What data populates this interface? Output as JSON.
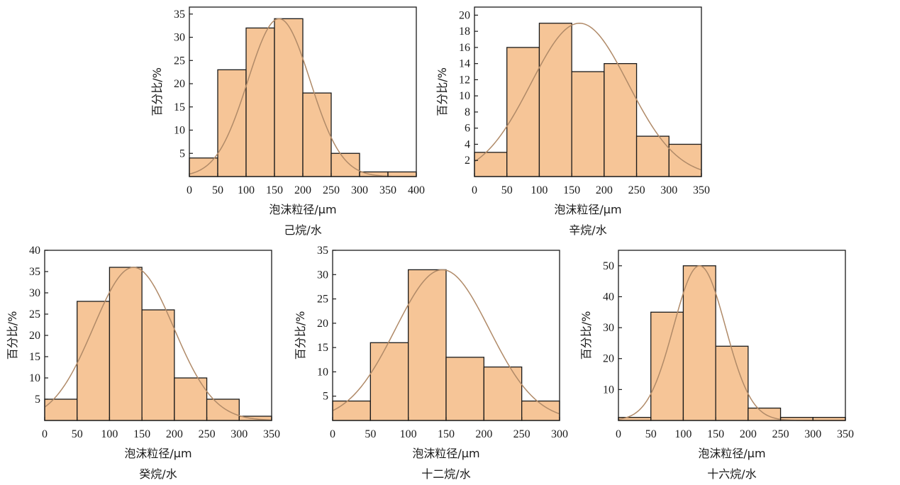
{
  "figure_colors": {
    "bar_fill": "#F6C597",
    "bar_edge": "#1a1a1a",
    "curve": "#B08A68"
  },
  "chart_data": [
    {
      "type": "bar",
      "histogram": true,
      "title": "己烷/水",
      "xlabel": "泡沫粒径/μm",
      "ylabel": "百分比/%",
      "bins": [
        [
          0,
          50
        ],
        [
          50,
          100
        ],
        [
          100,
          150
        ],
        [
          150,
          200
        ],
        [
          200,
          250
        ],
        [
          250,
          300
        ],
        [
          300,
          350
        ],
        [
          350,
          400
        ]
      ],
      "values": [
        4,
        23,
        32,
        34,
        18,
        5,
        1,
        1
      ],
      "xlim": [
        0,
        400
      ],
      "ylim": [
        0,
        36.5
      ],
      "xticks": [
        0,
        50,
        100,
        150,
        200,
        250,
        300,
        350,
        400
      ],
      "yticks": [
        5,
        10,
        15,
        20,
        25,
        30,
        35
      ],
      "fit_curve": {
        "type": "normal",
        "mean": 158,
        "sd": 55,
        "peak": 34
      }
    },
    {
      "type": "bar",
      "histogram": true,
      "title": "辛烷/水",
      "xlabel": "泡沫粒径/μm",
      "ylabel": "百分比/%",
      "bins": [
        [
          0,
          50
        ],
        [
          50,
          100
        ],
        [
          100,
          150
        ],
        [
          150,
          200
        ],
        [
          200,
          250
        ],
        [
          250,
          300
        ],
        [
          300,
          350
        ]
      ],
      "values": [
        3,
        16,
        19,
        13,
        14,
        5,
        4
      ],
      "xlim": [
        0,
        350
      ],
      "ylim": [
        0,
        21
      ],
      "xticks": [
        0,
        50,
        100,
        150,
        200,
        250,
        300,
        350
      ],
      "yticks": [
        2,
        4,
        6,
        8,
        10,
        12,
        14,
        16,
        18,
        20
      ],
      "fit_curve": {
        "type": "normal",
        "mean": 162,
        "sd": 75,
        "peak": 19
      }
    },
    {
      "type": "bar",
      "histogram": true,
      "title": "癸烷/水",
      "xlabel": "泡沫粒径/μm",
      "ylabel": "百分比/%",
      "bins": [
        [
          0,
          50
        ],
        [
          50,
          100
        ],
        [
          100,
          150
        ],
        [
          150,
          200
        ],
        [
          200,
          250
        ],
        [
          250,
          300
        ],
        [
          300,
          350
        ]
      ],
      "values": [
        5,
        28,
        36,
        26,
        10,
        5,
        1
      ],
      "xlim": [
        0,
        350
      ],
      "ylim": [
        0,
        40
      ],
      "xticks": [
        0,
        50,
        100,
        150,
        200,
        250,
        300,
        350
      ],
      "yticks": [
        5,
        10,
        15,
        20,
        25,
        30,
        35,
        40
      ],
      "fit_curve": {
        "type": "normal",
        "mean": 137,
        "sd": 62,
        "peak": 36
      }
    },
    {
      "type": "bar",
      "histogram": true,
      "title": "十二烷/水",
      "xlabel": "泡沫粒径/μm",
      "ylabel": "百分比/%",
      "bins": [
        [
          0,
          50
        ],
        [
          50,
          100
        ],
        [
          100,
          150
        ],
        [
          150,
          200
        ],
        [
          200,
          250
        ],
        [
          250,
          300
        ]
      ],
      "values": [
        4,
        16,
        31,
        13,
        11,
        4
      ],
      "xlim": [
        0,
        300
      ],
      "ylim": [
        0,
        35
      ],
      "xticks": [
        0,
        50,
        100,
        150,
        200,
        250,
        300
      ],
      "yticks": [
        5,
        10,
        15,
        20,
        25,
        30,
        35
      ],
      "fit_curve": {
        "type": "normal",
        "mean": 145,
        "sd": 62,
        "peak": 31
      }
    },
    {
      "type": "bar",
      "histogram": true,
      "title": "十六烷/水",
      "xlabel": "泡沫粒径/μm",
      "ylabel": "百分比/%",
      "bins": [
        [
          0,
          50
        ],
        [
          50,
          100
        ],
        [
          100,
          150
        ],
        [
          150,
          200
        ],
        [
          200,
          250
        ],
        [
          250,
          300
        ],
        [
          300,
          350
        ]
      ],
      "values": [
        1,
        35,
        50,
        24,
        4,
        1,
        1
      ],
      "xlim": [
        0,
        350
      ],
      "ylim": [
        0,
        55
      ],
      "xticks": [
        0,
        50,
        100,
        150,
        200,
        250,
        300,
        350
      ],
      "yticks": [
        10,
        20,
        30,
        40,
        50
      ],
      "fit_curve": {
        "type": "normal",
        "mean": 125,
        "sd": 40,
        "peak": 50
      }
    }
  ]
}
